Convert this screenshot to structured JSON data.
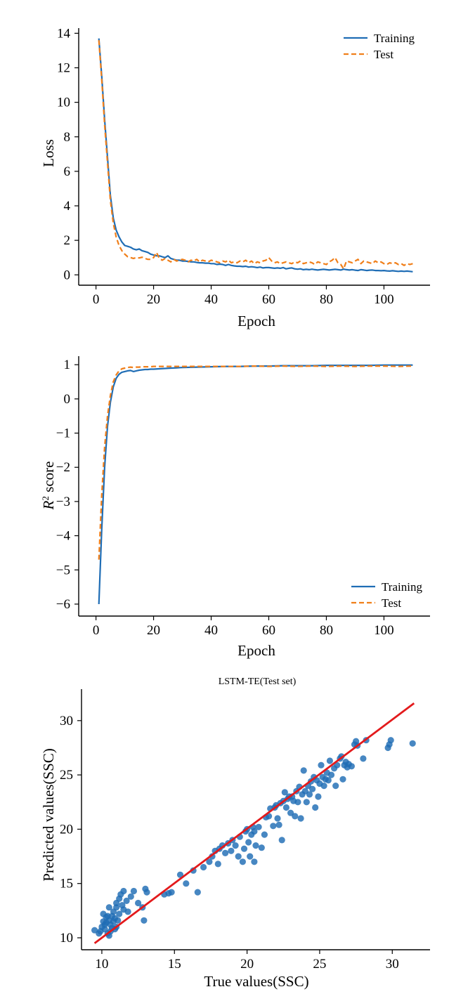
{
  "colors": {
    "training": "#1f6db5",
    "test": "#f07f1a",
    "scatter": "#1f6db5",
    "fit_line": "#e31a1c"
  },
  "chart_data": [
    {
      "type": "line",
      "title": "",
      "xlabel": "Epoch",
      "ylabel": "Loss",
      "xlim": [
        -6,
        116
      ],
      "ylim": [
        -0.6,
        14.3
      ],
      "xticks": [
        0,
        20,
        40,
        60,
        80,
        100
      ],
      "xtick_labels": [
        "0",
        "20",
        "40",
        "60",
        "80",
        "100"
      ],
      "yticks": [
        0,
        2,
        4,
        6,
        8,
        10,
        12,
        14
      ],
      "ytick_labels": [
        "0",
        "2",
        "4",
        "6",
        "8",
        "10",
        "12",
        "14"
      ],
      "grid": false,
      "legend_position": "top-right",
      "legend": [
        "Training",
        "Test"
      ],
      "x": [
        1,
        2,
        3,
        4,
        5,
        6,
        7,
        8,
        9,
        10,
        11,
        12,
        13,
        14,
        15,
        16,
        17,
        18,
        19,
        20,
        21,
        22,
        23,
        24,
        25,
        26,
        27,
        28,
        29,
        30,
        31,
        32,
        33,
        34,
        35,
        36,
        37,
        38,
        39,
        40,
        41,
        42,
        43,
        44,
        45,
        46,
        47,
        48,
        49,
        50,
        51,
        52,
        53,
        54,
        55,
        56,
        57,
        58,
        59,
        60,
        61,
        62,
        63,
        64,
        65,
        66,
        67,
        68,
        69,
        70,
        71,
        72,
        73,
        74,
        75,
        76,
        77,
        78,
        79,
        80,
        81,
        82,
        83,
        84,
        85,
        86,
        87,
        88,
        89,
        90,
        91,
        92,
        93,
        94,
        95,
        96,
        97,
        98,
        99,
        100,
        101,
        102,
        103,
        104,
        105,
        106,
        107,
        108,
        109,
        110
      ],
      "series": [
        {
          "name": "Training",
          "style": "solid",
          "values": [
            13.7,
            11.5,
            9.0,
            6.8,
            4.6,
            3.3,
            2.6,
            2.2,
            1.9,
            1.7,
            1.65,
            1.6,
            1.5,
            1.45,
            1.5,
            1.4,
            1.35,
            1.3,
            1.2,
            1.15,
            1.1,
            1.1,
            1.05,
            1.0,
            1.1,
            0.95,
            0.9,
            0.85,
            0.85,
            0.8,
            0.8,
            0.78,
            0.75,
            0.75,
            0.72,
            0.7,
            0.7,
            0.68,
            0.68,
            0.65,
            0.65,
            0.6,
            0.62,
            0.6,
            0.55,
            0.6,
            0.55,
            0.52,
            0.5,
            0.5,
            0.48,
            0.5,
            0.45,
            0.47,
            0.45,
            0.42,
            0.45,
            0.4,
            0.42,
            0.42,
            0.4,
            0.38,
            0.4,
            0.38,
            0.42,
            0.35,
            0.38,
            0.4,
            0.35,
            0.33,
            0.35,
            0.3,
            0.32,
            0.3,
            0.33,
            0.3,
            0.28,
            0.3,
            0.32,
            0.3,
            0.28,
            0.3,
            0.32,
            0.3,
            0.28,
            0.33,
            0.3,
            0.28,
            0.3,
            0.27,
            0.25,
            0.3,
            0.28,
            0.25,
            0.27,
            0.28,
            0.25,
            0.25,
            0.24,
            0.25,
            0.23,
            0.22,
            0.24,
            0.22,
            0.2,
            0.22,
            0.2,
            0.22,
            0.2,
            0.18
          ]
        },
        {
          "name": "Test",
          "style": "dashed",
          "values": [
            13.6,
            11.3,
            8.7,
            6.5,
            4.3,
            3.0,
            2.2,
            1.7,
            1.4,
            1.2,
            1.05,
            1.0,
            0.95,
            1.0,
            0.98,
            1.02,
            0.95,
            0.9,
            0.9,
            1.0,
            1.3,
            0.95,
            0.85,
            0.95,
            0.85,
            0.75,
            0.9,
            0.8,
            0.85,
            0.9,
            0.85,
            0.75,
            0.85,
            0.8,
            0.9,
            0.75,
            0.85,
            0.8,
            0.75,
            0.85,
            0.8,
            0.75,
            0.7,
            0.8,
            0.75,
            0.85,
            0.7,
            0.75,
            0.7,
            0.8,
            0.75,
            0.85,
            0.7,
            0.8,
            0.65,
            0.75,
            0.7,
            0.8,
            0.85,
            1.0,
            0.8,
            0.7,
            0.75,
            0.65,
            0.7,
            0.75,
            0.7,
            0.65,
            0.75,
            0.7,
            0.8,
            0.65,
            0.7,
            0.75,
            0.7,
            0.6,
            0.75,
            0.7,
            0.65,
            0.6,
            0.75,
            0.85,
            1.0,
            0.7,
            0.6,
            0.35,
            0.8,
            0.75,
            0.7,
            0.8,
            0.9,
            0.65,
            0.8,
            0.75,
            0.7,
            0.65,
            0.8,
            0.7,
            0.75,
            0.65,
            0.6,
            0.7,
            0.65,
            0.7,
            0.6,
            0.65,
            0.55,
            0.65,
            0.6,
            0.65
          ]
        }
      ]
    },
    {
      "type": "line",
      "title": "",
      "xlabel": "Epoch",
      "ylabel_prefix": "R",
      "ylabel_sup": "2",
      "ylabel_suffix": " score",
      "xlim": [
        -6,
        116
      ],
      "ylim": [
        -6.35,
        1.25
      ],
      "xticks": [
        0,
        20,
        40,
        60,
        80,
        100
      ],
      "xtick_labels": [
        "0",
        "20",
        "40",
        "60",
        "80",
        "100"
      ],
      "yticks": [
        1,
        0,
        -1,
        -2,
        -3,
        -4,
        -5,
        -6
      ],
      "ytick_labels": [
        "1",
        "0",
        "−1",
        "−2",
        "−3",
        "−4",
        "−5",
        "−6"
      ],
      "grid": false,
      "legend_position": "bottom-right",
      "legend": [
        "Training",
        "Test"
      ],
      "x": [
        1,
        2,
        3,
        4,
        5,
        6,
        7,
        8,
        9,
        10,
        11,
        12,
        13,
        14,
        15,
        16,
        17,
        18,
        19,
        20,
        22,
        24,
        26,
        28,
        30,
        35,
        40,
        45,
        50,
        55,
        60,
        65,
        70,
        75,
        80,
        85,
        90,
        95,
        100,
        105,
        110
      ],
      "series": [
        {
          "name": "Training",
          "style": "solid",
          "values": [
            -6.0,
            -3.8,
            -2.0,
            -0.8,
            -0.1,
            0.35,
            0.6,
            0.72,
            0.78,
            0.8,
            0.82,
            0.83,
            0.8,
            0.82,
            0.84,
            0.85,
            0.86,
            0.86,
            0.87,
            0.87,
            0.88,
            0.89,
            0.9,
            0.91,
            0.92,
            0.93,
            0.94,
            0.95,
            0.95,
            0.96,
            0.96,
            0.97,
            0.97,
            0.97,
            0.98,
            0.98,
            0.98,
            0.98,
            0.99,
            0.99,
            0.99
          ]
        },
        {
          "name": "Test",
          "style": "dashed",
          "values": [
            -4.7,
            -2.8,
            -1.4,
            -0.5,
            0.1,
            0.5,
            0.7,
            0.82,
            0.88,
            0.9,
            0.92,
            0.93,
            0.92,
            0.93,
            0.93,
            0.94,
            0.94,
            0.94,
            0.94,
            0.95,
            0.95,
            0.95,
            0.95,
            0.95,
            0.95,
            0.95,
            0.95,
            0.95,
            0.95,
            0.96,
            0.95,
            0.96,
            0.95,
            0.96,
            0.95,
            0.96,
            0.95,
            0.96,
            0.96,
            0.95,
            0.96
          ]
        }
      ]
    },
    {
      "type": "scatter",
      "title": "LSTM-TE(Test set)",
      "xlabel": "True values(SSC)",
      "ylabel": "Predicted values(SSC)",
      "xlim": [
        8.6,
        32.6
      ],
      "ylim": [
        8.9,
        32.9
      ],
      "xticks": [
        10,
        15,
        20,
        25,
        30
      ],
      "xtick_labels": [
        "10",
        "15",
        "20",
        "25",
        "30"
      ],
      "yticks": [
        10,
        15,
        20,
        25,
        30
      ],
      "ytick_labels": [
        "10",
        "15",
        "20",
        "25",
        "30"
      ],
      "grid": false,
      "fit_line": {
        "x": [
          9.5,
          31.5
        ],
        "y": [
          9.5,
          31.6
        ]
      },
      "points": [
        [
          9.5,
          10.7
        ],
        [
          9.8,
          10.4
        ],
        [
          9.9,
          10.6
        ],
        [
          10.0,
          11.0
        ],
        [
          10.1,
          11.5
        ],
        [
          10.1,
          12.2
        ],
        [
          10.2,
          11.2
        ],
        [
          10.2,
          10.8
        ],
        [
          10.3,
          11.9
        ],
        [
          10.3,
          11.4
        ],
        [
          10.4,
          10.4
        ],
        [
          10.4,
          12.0
        ],
        [
          10.5,
          10.2
        ],
        [
          10.5,
          11.6
        ],
        [
          10.5,
          12.8
        ],
        [
          10.6,
          10.6
        ],
        [
          10.6,
          11.2
        ],
        [
          10.7,
          12.0
        ],
        [
          10.7,
          10.9
        ],
        [
          10.8,
          11.5
        ],
        [
          10.8,
          12.4
        ],
        [
          10.9,
          10.8
        ],
        [
          10.9,
          11.8
        ],
        [
          11.0,
          11.0
        ],
        [
          11.0,
          12.8
        ],
        [
          11.0,
          13.2
        ],
        [
          11.1,
          11.6
        ],
        [
          11.2,
          12.2
        ],
        [
          11.2,
          13.6
        ],
        [
          11.3,
          14.0
        ],
        [
          11.4,
          13.0
        ],
        [
          11.5,
          12.6
        ],
        [
          11.5,
          14.3
        ],
        [
          11.7,
          13.4
        ],
        [
          11.8,
          12.4
        ],
        [
          12.0,
          13.8
        ],
        [
          12.2,
          14.3
        ],
        [
          12.5,
          13.2
        ],
        [
          12.8,
          12.8
        ],
        [
          12.9,
          11.6
        ],
        [
          13.0,
          14.5
        ],
        [
          13.1,
          14.2
        ],
        [
          14.3,
          14.0
        ],
        [
          14.6,
          14.1
        ],
        [
          14.8,
          14.2
        ],
        [
          15.4,
          15.8
        ],
        [
          15.8,
          15.0
        ],
        [
          16.3,
          16.2
        ],
        [
          16.6,
          14.2
        ],
        [
          17.0,
          16.5
        ],
        [
          17.4,
          17.0
        ],
        [
          17.6,
          17.5
        ],
        [
          17.8,
          18.0
        ],
        [
          18.0,
          16.8
        ],
        [
          18.1,
          18.2
        ],
        [
          18.3,
          18.5
        ],
        [
          18.5,
          17.8
        ],
        [
          18.7,
          18.7
        ],
        [
          18.9,
          18.0
        ],
        [
          19.0,
          19.0
        ],
        [
          19.2,
          18.5
        ],
        [
          19.4,
          17.5
        ],
        [
          19.5,
          19.3
        ],
        [
          19.7,
          17.0
        ],
        [
          19.8,
          18.2
        ],
        [
          19.9,
          19.8
        ],
        [
          20.0,
          20.0
        ],
        [
          20.1,
          18.8
        ],
        [
          20.2,
          17.5
        ],
        [
          20.3,
          19.5
        ],
        [
          20.4,
          20.2
        ],
        [
          20.5,
          17.0
        ],
        [
          20.5,
          19.8
        ],
        [
          20.6,
          18.5
        ],
        [
          20.8,
          20.2
        ],
        [
          21.0,
          18.3
        ],
        [
          21.2,
          19.5
        ],
        [
          21.3,
          21.1
        ],
        [
          21.5,
          21.2
        ],
        [
          21.6,
          21.9
        ],
        [
          21.8,
          20.3
        ],
        [
          21.9,
          22.0
        ],
        [
          22.0,
          22.2
        ],
        [
          22.1,
          21.0
        ],
        [
          22.2,
          20.4
        ],
        [
          22.3,
          22.4
        ],
        [
          22.4,
          19.0
        ],
        [
          22.5,
          22.6
        ],
        [
          22.6,
          23.4
        ],
        [
          22.7,
          22.0
        ],
        [
          22.8,
          22.8
        ],
        [
          22.9,
          23.0
        ],
        [
          23.0,
          21.5
        ],
        [
          23.1,
          23.0
        ],
        [
          23.2,
          22.6
        ],
        [
          23.3,
          21.2
        ],
        [
          23.4,
          23.5
        ],
        [
          23.5,
          22.5
        ],
        [
          23.6,
          23.9
        ],
        [
          23.7,
          21.0
        ],
        [
          23.8,
          23.2
        ],
        [
          23.9,
          25.4
        ],
        [
          24.0,
          23.5
        ],
        [
          24.1,
          22.5
        ],
        [
          24.2,
          24.0
        ],
        [
          24.3,
          23.2
        ],
        [
          24.4,
          24.4
        ],
        [
          24.5,
          23.7
        ],
        [
          24.6,
          24.8
        ],
        [
          24.7,
          22.0
        ],
        [
          24.8,
          24.5
        ],
        [
          24.9,
          23.0
        ],
        [
          25.0,
          24.2
        ],
        [
          25.1,
          25.9
        ],
        [
          25.2,
          24.8
        ],
        [
          25.3,
          24.0
        ],
        [
          25.4,
          24.6
        ],
        [
          25.5,
          25.2
        ],
        [
          25.6,
          24.5
        ],
        [
          25.7,
          26.3
        ],
        [
          25.8,
          25.0
        ],
        [
          26.0,
          25.6
        ],
        [
          26.1,
          24.0
        ],
        [
          26.2,
          25.9
        ],
        [
          26.4,
          26.5
        ],
        [
          26.5,
          26.7
        ],
        [
          26.6,
          24.6
        ],
        [
          26.7,
          25.9
        ],
        [
          26.8,
          26.2
        ],
        [
          26.9,
          25.7
        ],
        [
          27.0,
          26.0
        ],
        [
          27.2,
          25.8
        ],
        [
          27.4,
          27.8
        ],
        [
          27.5,
          28.1
        ],
        [
          27.6,
          27.7
        ],
        [
          28.0,
          26.5
        ],
        [
          28.2,
          28.2
        ],
        [
          29.7,
          27.5
        ],
        [
          29.8,
          27.8
        ],
        [
          29.9,
          28.2
        ],
        [
          31.4,
          27.9
        ]
      ]
    }
  ]
}
